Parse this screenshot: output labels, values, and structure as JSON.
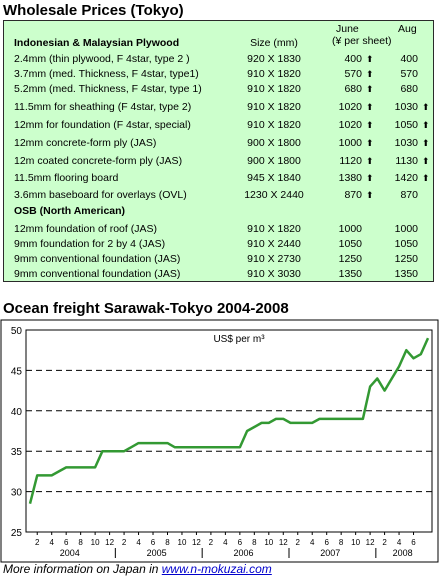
{
  "table": {
    "title": "Wholesale Prices (Tokyo)",
    "header": {
      "group1": "Indonesian & Malaysian Plywood",
      "size": "Size (mm)",
      "june": "June",
      "aug": "Aug",
      "unit": "(¥ per sheet)"
    },
    "rows": [
      {
        "name": "2.4mm  (thin plywood, F 4star, type 2 )",
        "size": "920 X 1830",
        "june": "400",
        "june_arrow": "up",
        "aug": "400",
        "aug_arrow": ""
      },
      {
        "name": "3.7mm  (med. Thickness,  F 4star, type1)",
        "size": "910 X 1820",
        "june": "570",
        "june_arrow": "up",
        "aug": "570",
        "aug_arrow": ""
      },
      {
        "name": "5.2mm  (med. Thickness, F 4star, type 1)",
        "size": "910 X 1820",
        "june": "680",
        "june_arrow": "up",
        "aug": "680",
        "aug_arrow": ""
      },
      {
        "name": "11.5mm  for sheathing (F 4star, type 2)",
        "size": "910 X 1820",
        "june": "1020",
        "june_arrow": "up",
        "aug": "1030",
        "aug_arrow": "up"
      },
      {
        "name": "12mm for foundation (F 4star, special)",
        "size": "910 X 1820",
        "june": "1020",
        "june_arrow": "up",
        "aug": "1050",
        "aug_arrow": "up"
      },
      {
        "name": "12mm concrete-form ply (JAS)",
        "size": "900 X 1800",
        "june": "1000",
        "june_arrow": "up",
        "aug": "1030",
        "aug_arrow": "up"
      },
      {
        "name": "12m coated concrete-form ply (JAS)",
        "size": "900 X 1800",
        "june": "1120",
        "june_arrow": "up",
        "aug": "1130",
        "aug_arrow": "up"
      },
      {
        "name": "11.5mm flooring board",
        "size": "945 X 1840",
        "june": "1380",
        "june_arrow": "up",
        "aug": "1420",
        "aug_arrow": "up"
      },
      {
        "name": "3.6mm baseboard for overlays (OVL)",
        "size": "1230 X 2440",
        "june": "870",
        "june_arrow": "up",
        "aug": "870",
        "aug_arrow": ""
      }
    ],
    "group2": "OSB (North American)",
    "rows2": [
      {
        "name": "12mm foundation of roof (JAS)",
        "size": "910 X 1820",
        "june": "1000",
        "aug": "1000"
      },
      {
        "name": "9mm foundation for 2 by 4 (JAS)",
        "size": "910 X 2440",
        "june": "1050",
        "aug": "1050"
      },
      {
        "name": "9mm conventional foundation (JAS)",
        "size": "910 X 2730",
        "june": "1250",
        "aug": "1250"
      },
      {
        "name": "9mm conventional foundation (JAS)",
        "size": "910 X 3030",
        "june": "1350",
        "aug": "1350"
      }
    ]
  },
  "chart_data": {
    "type": "line",
    "title": "Ocean freight Sarawak-Tokyo 2004-2008",
    "unit_label": "US$ per m³",
    "ylim": [
      25,
      50
    ],
    "yticks": [
      25,
      30,
      35,
      40,
      45,
      50
    ],
    "grid": "horizontal dashed",
    "line_color": "#339933",
    "x_month_ticks": [
      "2",
      "4",
      "6",
      "8",
      "10",
      "12",
      "2",
      "4",
      "6",
      "8",
      "10",
      "12",
      "2",
      "4",
      "6",
      "8",
      "10",
      "12",
      "2",
      "4",
      "6",
      "8",
      "10",
      "12",
      "2",
      "4",
      "6"
    ],
    "x_year_labels": [
      "2004",
      "2005",
      "2006",
      "2007",
      "2008"
    ],
    "x_start": "2004-01",
    "x_end": "2008-08",
    "series": [
      {
        "name": "",
        "x": [
          "2004-01",
          "2004-02",
          "2004-03",
          "2004-04",
          "2004-05",
          "2004-06",
          "2004-07",
          "2004-08",
          "2004-09",
          "2004-10",
          "2004-11",
          "2004-12",
          "2005-01",
          "2005-02",
          "2005-03",
          "2005-04",
          "2005-05",
          "2005-06",
          "2005-07",
          "2005-08",
          "2005-09",
          "2005-10",
          "2005-11",
          "2005-12",
          "2006-01",
          "2006-02",
          "2006-03",
          "2006-04",
          "2006-05",
          "2006-06",
          "2006-07",
          "2006-08",
          "2006-09",
          "2006-10",
          "2006-11",
          "2006-12",
          "2007-01",
          "2007-02",
          "2007-03",
          "2007-04",
          "2007-05",
          "2007-06",
          "2007-07",
          "2007-08",
          "2007-09",
          "2007-10",
          "2007-11",
          "2007-12",
          "2008-01",
          "2008-02",
          "2008-03",
          "2008-04",
          "2008-05",
          "2008-06",
          "2008-07",
          "2008-08"
        ],
        "values": [
          28.5,
          32,
          32,
          32,
          32.5,
          33,
          33,
          33,
          33,
          33,
          35,
          35,
          35,
          35,
          35.5,
          36,
          36,
          36,
          36,
          36,
          35.5,
          35.5,
          35.5,
          35.5,
          35.5,
          35.5,
          35.5,
          35.5,
          35.5,
          35.5,
          37.5,
          38,
          38.5,
          38.5,
          39,
          39,
          38.5,
          38.5,
          38.5,
          38.5,
          39,
          39,
          39,
          39,
          39,
          39,
          39,
          43,
          44,
          42.5,
          44,
          45.5,
          47.5,
          46.5,
          47,
          49
        ]
      }
    ]
  },
  "footer": {
    "prefix": "More information on Japan in ",
    "link": "www.n-mokuzai.com"
  }
}
